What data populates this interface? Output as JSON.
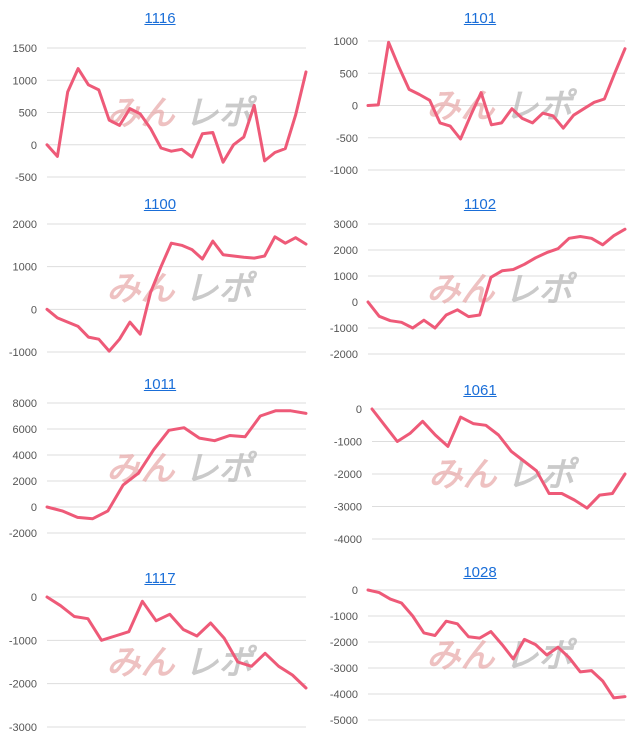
{
  "watermark": {
    "part1": "みん",
    "part2": "レポ"
  },
  "colors": {
    "line": "#ee5a78",
    "grid": "#dddddd",
    "title": "#1a6ed8",
    "axis_text": "#555555"
  },
  "chart_data": [
    {
      "type": "line",
      "title": "1116",
      "yticks": [
        1500,
        1000,
        500,
        0,
        -500
      ],
      "ylim": [
        -500,
        1500
      ],
      "series": [
        {
          "values": [
            0,
            -180,
            820,
            1180,
            930,
            850,
            380,
            300,
            560,
            480,
            250,
            -50,
            -100,
            -70,
            -190,
            170,
            190,
            -270,
            0,
            120,
            610,
            -250,
            -120,
            -60,
            460,
            1130
          ]
        }
      ]
    },
    {
      "type": "line",
      "title": "1101",
      "yticks": [
        1000,
        500,
        0,
        -500,
        -1000
      ],
      "ylim": [
        -1000,
        1000
      ],
      "series": [
        {
          "values": [
            0,
            10,
            980,
            600,
            250,
            170,
            80,
            -270,
            -320,
            -520,
            -150,
            200,
            -300,
            -270,
            -50,
            -200,
            -270,
            -120,
            -160,
            -350,
            -150,
            -50,
            50,
            100,
            500,
            880
          ]
        }
      ]
    },
    {
      "type": "line",
      "title": "1100",
      "yticks": [
        2000,
        1000,
        0,
        -1000
      ],
      "ylim": [
        -1000,
        2000
      ],
      "series": [
        {
          "values": [
            0,
            -200,
            -300,
            -400,
            -650,
            -700,
            -980,
            -700,
            -300,
            -580,
            400,
            1000,
            1550,
            1500,
            1400,
            1180,
            1600,
            1280,
            1250,
            1220,
            1200,
            1250,
            1700,
            1550,
            1680,
            1530
          ]
        }
      ]
    },
    {
      "type": "line",
      "title": "1102",
      "yticks": [
        3000,
        2000,
        1000,
        0,
        -1000,
        -2000
      ],
      "ylim": [
        -2000,
        3000
      ],
      "series": [
        {
          "values": [
            0,
            -550,
            -720,
            -780,
            -1000,
            -700,
            -1000,
            -500,
            -300,
            -560,
            -500,
            950,
            1200,
            1250,
            1450,
            1700,
            1900,
            2050,
            2450,
            2520,
            2450,
            2200,
            2550,
            2800
          ]
        }
      ]
    },
    {
      "type": "line",
      "title": "1011",
      "yticks": [
        8000,
        6000,
        4000,
        2000,
        0,
        -2000
      ],
      "ylim": [
        -2000,
        8000
      ],
      "series": [
        {
          "values": [
            0,
            -300,
            -800,
            -900,
            -300,
            1700,
            2600,
            4400,
            5900,
            6100,
            5300,
            5100,
            5500,
            5400,
            7000,
            7400,
            7400,
            7200
          ]
        }
      ]
    },
    {
      "type": "line",
      "title": "1061",
      "yticks": [
        0,
        -1000,
        -2000,
        -3000,
        -4000
      ],
      "ylim": [
        -4000,
        0
      ],
      "series": [
        {
          "values": [
            0,
            -500,
            -1000,
            -750,
            -380,
            -800,
            -1150,
            -250,
            -450,
            -500,
            -800,
            -1300,
            -1600,
            -1900,
            -2600,
            -2600,
            -2800,
            -3050,
            -2650,
            -2600,
            -2000
          ]
        }
      ]
    },
    {
      "type": "line",
      "title": "1117",
      "yticks": [
        0,
        -1000,
        -2000,
        -3000
      ],
      "ylim": [
        -3000,
        0
      ],
      "series": [
        {
          "values": [
            0,
            -200,
            -450,
            -500,
            -1000,
            -900,
            -800,
            -100,
            -550,
            -400,
            -750,
            -900,
            -600,
            -950,
            -1500,
            -1600,
            -1300,
            -1600,
            -1800,
            -2100
          ]
        }
      ]
    },
    {
      "type": "line",
      "title": "1028",
      "yticks": [
        0,
        -1000,
        -2000,
        -3000,
        -4000,
        -5000
      ],
      "ylim": [
        -5000,
        0
      ],
      "series": [
        {
          "values": [
            0,
            -100,
            -350,
            -500,
            -1000,
            -1650,
            -1750,
            -1200,
            -1300,
            -1800,
            -1850,
            -1600,
            -2100,
            -2650,
            -1900,
            -2100,
            -2500,
            -2200,
            -2600,
            -3150,
            -3100,
            -3500,
            -4150,
            -4100
          ]
        }
      ]
    }
  ]
}
